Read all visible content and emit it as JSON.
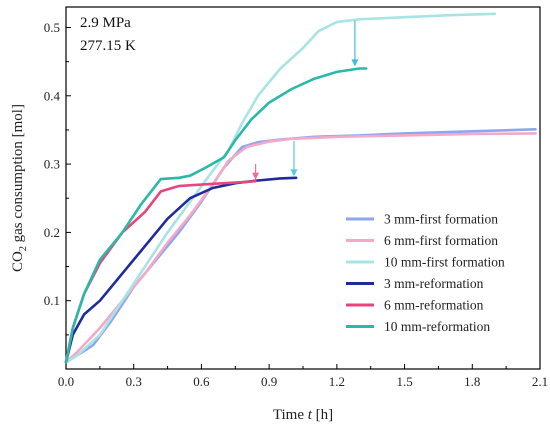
{
  "chart_data": {
    "type": "line",
    "xlabel_prefix": "Time ",
    "xlabel_var": "t",
    "xlabel_unit": " [h]",
    "ylabel_pre": "CO",
    "ylabel_sub": "2",
    "ylabel_post": " gas consumption [mol]",
    "annotations": [
      "2.9 MPa",
      "277.15 K"
    ],
    "xlim": [
      0,
      2.1
    ],
    "ylim": [
      0,
      0.53
    ],
    "xticks": [
      "0.0",
      "0.3",
      "0.6",
      "0.9",
      "1.2",
      "1.5",
      "1.8",
      "2.1"
    ],
    "yticks": [
      "0.1",
      "0.2",
      "0.3",
      "0.4",
      "0.5"
    ],
    "legend_position": "right-middle",
    "series": [
      {
        "name": "3 mm-first  formation",
        "color": "#8EA6EE",
        "points": [
          [
            0,
            0.01
          ],
          [
            0.05,
            0.02
          ],
          [
            0.12,
            0.035
          ],
          [
            0.2,
            0.07
          ],
          [
            0.3,
            0.12
          ],
          [
            0.4,
            0.16
          ],
          [
            0.5,
            0.2
          ],
          [
            0.6,
            0.245
          ],
          [
            0.7,
            0.295
          ],
          [
            0.78,
            0.325
          ],
          [
            0.85,
            0.332
          ],
          [
            0.95,
            0.336
          ],
          [
            1.1,
            0.34
          ],
          [
            1.3,
            0.342
          ],
          [
            1.5,
            0.345
          ],
          [
            1.8,
            0.348
          ],
          [
            2.08,
            0.351
          ]
        ]
      },
      {
        "name": "6 mm-first  formation",
        "color": "#F5A8C8",
        "points": [
          [
            0,
            0.01
          ],
          [
            0.05,
            0.025
          ],
          [
            0.15,
            0.06
          ],
          [
            0.25,
            0.1
          ],
          [
            0.35,
            0.14
          ],
          [
            0.45,
            0.185
          ],
          [
            0.55,
            0.225
          ],
          [
            0.65,
            0.27
          ],
          [
            0.72,
            0.305
          ],
          [
            0.8,
            0.325
          ],
          [
            0.9,
            0.333
          ],
          [
            1.0,
            0.337
          ],
          [
            1.2,
            0.34
          ],
          [
            1.5,
            0.342
          ],
          [
            1.8,
            0.344
          ],
          [
            2.08,
            0.345
          ]
        ]
      },
      {
        "name": "10 mm-first  formation",
        "color": "#A8E4E4",
        "points": [
          [
            0,
            0.01
          ],
          [
            0.05,
            0.02
          ],
          [
            0.15,
            0.05
          ],
          [
            0.25,
            0.1
          ],
          [
            0.35,
            0.15
          ],
          [
            0.45,
            0.2
          ],
          [
            0.55,
            0.245
          ],
          [
            0.65,
            0.29
          ],
          [
            0.72,
            0.32
          ],
          [
            0.78,
            0.36
          ],
          [
            0.85,
            0.4
          ],
          [
            0.95,
            0.44
          ],
          [
            1.05,
            0.47
          ],
          [
            1.12,
            0.495
          ],
          [
            1.2,
            0.508
          ],
          [
            1.3,
            0.512
          ],
          [
            1.5,
            0.515
          ],
          [
            1.7,
            0.518
          ],
          [
            1.9,
            0.52
          ]
        ]
      },
      {
        "name": "3 mm-reformation",
        "color": "#1F2A9C",
        "points": [
          [
            0,
            0.01
          ],
          [
            0.03,
            0.05
          ],
          [
            0.08,
            0.08
          ],
          [
            0.15,
            0.1
          ],
          [
            0.25,
            0.14
          ],
          [
            0.35,
            0.18
          ],
          [
            0.45,
            0.22
          ],
          [
            0.55,
            0.25
          ],
          [
            0.65,
            0.265
          ],
          [
            0.75,
            0.272
          ],
          [
            0.85,
            0.276
          ],
          [
            0.95,
            0.279
          ],
          [
            1.02,
            0.28
          ]
        ]
      },
      {
        "name": "6 mm-reformation",
        "color": "#E8457C",
        "points": [
          [
            0,
            0.01
          ],
          [
            0.03,
            0.06
          ],
          [
            0.08,
            0.11
          ],
          [
            0.15,
            0.155
          ],
          [
            0.25,
            0.2
          ],
          [
            0.35,
            0.23
          ],
          [
            0.42,
            0.26
          ],
          [
            0.5,
            0.268
          ],
          [
            0.6,
            0.27
          ],
          [
            0.7,
            0.272
          ],
          [
            0.8,
            0.274
          ],
          [
            0.84,
            0.275
          ]
        ]
      },
      {
        "name": "10 mm-reformation",
        "color": "#2BB8A8",
        "points": [
          [
            0,
            0.01
          ],
          [
            0.03,
            0.06
          ],
          [
            0.08,
            0.11
          ],
          [
            0.15,
            0.16
          ],
          [
            0.25,
            0.2
          ],
          [
            0.33,
            0.24
          ],
          [
            0.42,
            0.278
          ],
          [
            0.5,
            0.28
          ],
          [
            0.55,
            0.283
          ],
          [
            0.62,
            0.295
          ],
          [
            0.7,
            0.31
          ],
          [
            0.75,
            0.335
          ],
          [
            0.82,
            0.365
          ],
          [
            0.9,
            0.39
          ],
          [
            1.0,
            0.41
          ],
          [
            1.1,
            0.425
          ],
          [
            1.2,
            0.435
          ],
          [
            1.3,
            0.44
          ],
          [
            1.33,
            0.44
          ]
        ]
      }
    ],
    "arrows": [
      {
        "color": "#F06A9C",
        "x": 0.84,
        "y_from": 0.3,
        "y_to": 0.277
      },
      {
        "color": "#52CCDC",
        "x": 1.01,
        "y_from": 0.334,
        "y_to": 0.282
      },
      {
        "color": "#3CBFD0",
        "x": 1.28,
        "y_from": 0.51,
        "y_to": 0.443
      }
    ]
  }
}
